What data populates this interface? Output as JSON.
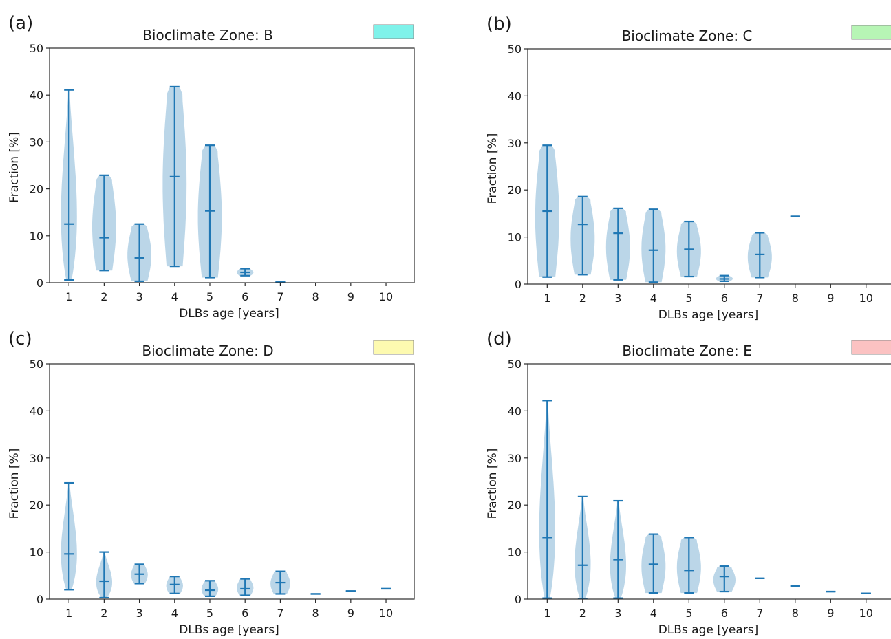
{
  "chart_data": [
    {
      "panel_label": "(a)",
      "type": "violin",
      "title": "Bioclimate Zone: B",
      "zone_color": "#7ff2ea",
      "xlabel": "DLBs age [years]",
      "ylabel": "Fraction [%]",
      "ylim": [
        0,
        50
      ],
      "yticks": [
        "0",
        "10",
        "20",
        "30",
        "40",
        "50"
      ],
      "categories": [
        "1",
        "2",
        "3",
        "4",
        "5",
        "6",
        "7",
        "8",
        "9",
        "10"
      ],
      "min": [
        0.6,
        2.6,
        0.3,
        3.5,
        1.1,
        1.5,
        0.1,
        null,
        null,
        null
      ],
      "median": [
        12.5,
        9.6,
        5.3,
        22.6,
        15.3,
        2.2,
        0.15,
        null,
        null,
        null
      ],
      "max": [
        41.1,
        22.9,
        12.5,
        41.8,
        29.3,
        3.0,
        0.2,
        null,
        null,
        null
      ]
    },
    {
      "panel_label": "(b)",
      "type": "violin",
      "title": "Bioclimate Zone: C",
      "zone_color": "#b7f5b5",
      "xlabel": "DLBs age [years]",
      "ylabel": "Fraction [%]",
      "ylim": [
        0,
        50
      ],
      "yticks": [
        "0",
        "10",
        "20",
        "30",
        "40",
        "50"
      ],
      "categories": [
        "1",
        "2",
        "3",
        "4",
        "5",
        "6",
        "7",
        "8",
        "9",
        "10"
      ],
      "min": [
        1.5,
        2.0,
        0.9,
        0.4,
        1.6,
        0.6,
        1.4,
        14.4,
        null,
        null
      ],
      "median": [
        15.5,
        12.7,
        10.8,
        7.2,
        7.4,
        1.1,
        6.3,
        14.4,
        null,
        null
      ],
      "max": [
        29.5,
        18.6,
        16.1,
        15.9,
        13.3,
        1.8,
        10.9,
        14.4,
        null,
        null
      ]
    },
    {
      "panel_label": "(c)",
      "type": "violin",
      "title": "Bioclimate Zone: D",
      "zone_color": "#fdfab0",
      "xlabel": "DLBs age [years]",
      "ylabel": "Fraction [%]",
      "ylim": [
        0,
        50
      ],
      "yticks": [
        "0",
        "10",
        "20",
        "30",
        "40",
        "50"
      ],
      "categories": [
        "1",
        "2",
        "3",
        "4",
        "5",
        "6",
        "7",
        "8",
        "9",
        "10"
      ],
      "min": [
        2.0,
        0.3,
        3.3,
        1.2,
        0.6,
        0.8,
        1.1,
        1.1,
        1.7,
        2.2
      ],
      "median": [
        9.6,
        3.8,
        5.3,
        3.1,
        1.9,
        2.2,
        3.5,
        1.1,
        1.7,
        2.2
      ],
      "max": [
        24.7,
        10.0,
        7.4,
        4.8,
        3.9,
        4.3,
        5.9,
        1.1,
        1.7,
        2.2
      ]
    },
    {
      "panel_label": "(d)",
      "type": "violin",
      "title": "Bioclimate Zone: E",
      "zone_color": "#fbc2c2",
      "xlabel": "DLBs age [years]",
      "ylabel": "Fraction [%]",
      "ylim": [
        0,
        50
      ],
      "yticks": [
        "0",
        "10",
        "20",
        "30",
        "40",
        "50"
      ],
      "categories": [
        "1",
        "2",
        "3",
        "4",
        "5",
        "6",
        "7",
        "8",
        "9",
        "10"
      ],
      "min": [
        0.2,
        0.1,
        0.2,
        1.3,
        1.3,
        1.6,
        4.4,
        2.8,
        1.6,
        1.2
      ],
      "median": [
        13.1,
        7.2,
        8.4,
        7.4,
        6.1,
        4.8,
        4.4,
        2.8,
        1.6,
        1.2
      ],
      "max": [
        42.2,
        21.8,
        20.9,
        13.8,
        13.1,
        7.0,
        4.4,
        2.8,
        1.6,
        1.2
      ]
    }
  ]
}
